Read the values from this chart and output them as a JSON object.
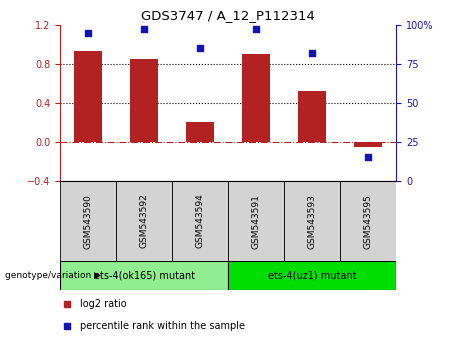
{
  "title": "GDS3747 / A_12_P112314",
  "samples": [
    "GSM543590",
    "GSM543592",
    "GSM543594",
    "GSM543591",
    "GSM543593",
    "GSM543595"
  ],
  "log2_ratio": [
    0.93,
    0.85,
    0.2,
    0.9,
    0.52,
    -0.05
  ],
  "percentile_rank": [
    95,
    97,
    85,
    97,
    82,
    15
  ],
  "bar_color": "#B22222",
  "dot_color": "#1414B4",
  "ylim_left": [
    -0.4,
    1.2
  ],
  "ylim_right": [
    0,
    100
  ],
  "yticks_left": [
    -0.4,
    0.0,
    0.4,
    0.8,
    1.2
  ],
  "yticks_right": [
    0,
    25,
    50,
    75,
    100
  ],
  "group1_label": "ets-4(ok165) mutant",
  "group2_label": "ets-4(uz1) mutant",
  "group1_color": "#90EE90",
  "group2_color": "#00DD00",
  "label_log2": "log2 ratio",
  "label_percentile": "percentile rank within the sample",
  "genotype_label": "genotype/variation",
  "hline_y": 0.0,
  "dotted_lines": [
    0.4,
    0.8
  ],
  "tick_label_fontsize": 7,
  "bar_width": 0.5
}
